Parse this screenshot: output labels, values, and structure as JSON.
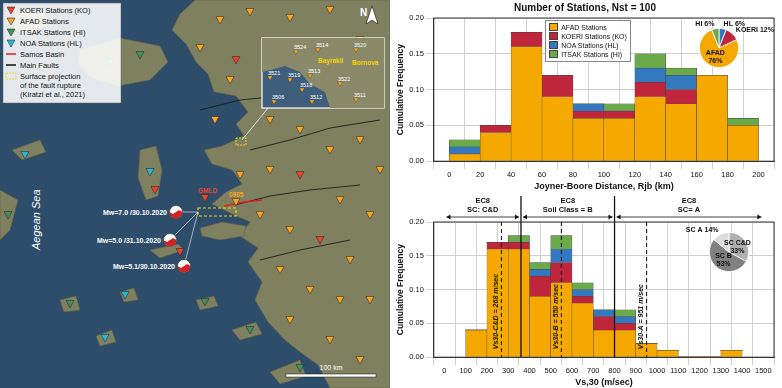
{
  "map": {
    "legend": [
      {
        "label": "KOERI Stations (KO)",
        "color": "#e8432d",
        "marker": "triangle"
      },
      {
        "label": "AFAD Stations",
        "color": "#f5a623",
        "marker": "triangle"
      },
      {
        "label": "ITSAK Stations (HI)",
        "color": "#3f8f5f",
        "marker": "triangle"
      },
      {
        "label": "NOA Stations (HL)",
        "color": "#2bb5d4",
        "marker": "triangle"
      },
      {
        "label": "Samos Basin",
        "color": "#e02020",
        "marker": "line"
      },
      {
        "label": "Main Faults",
        "color": "#111111",
        "marker": "line"
      },
      {
        "label": [
          "Surface projection",
          "of the fault rupture",
          "(Kiratzi et al., 2021)"
        ],
        "color": "#f2d21b",
        "marker": "dashed_box"
      }
    ],
    "sea_label": "Aegean Sea",
    "north_label": "N",
    "scale_label": "100 km",
    "events": [
      "Mw=7.0 /30.10.2020",
      "Mw=5.0 /31.10.2020",
      "Mw=5.1/30.10.2020"
    ],
    "stations_labeled": [
      {
        "label": "GMLD",
        "color": "#e8432d"
      },
      {
        "label": "0905",
        "color": "#f5a623"
      }
    ],
    "inset": {
      "places": [
        "Bayrakli",
        "Bornova"
      ],
      "stations": [
        "3524",
        "3514",
        "3520",
        "3521",
        "3519",
        "3513",
        "3518",
        "3522",
        "3506",
        "3512",
        "3511"
      ]
    }
  },
  "chart_data": [
    {
      "type": "bar",
      "title": "Number of Stations, Nst = 100",
      "x_label": "Joyner-Boore Distance, Rjb (km)",
      "y_label": "Cumulative Frequency",
      "bins": [
        0,
        20,
        40,
        60,
        80,
        100,
        120,
        140,
        160,
        180,
        200
      ],
      "stacked": true,
      "grid": true,
      "legend": "top",
      "xlim": [
        0,
        200
      ],
      "xticks": [
        0,
        20,
        40,
        60,
        80,
        100,
        120,
        140,
        160,
        180,
        200
      ],
      "ylim": [
        0,
        0.2
      ],
      "yticks": [
        {
          "value": 0,
          "label": "0.00"
        },
        0.05,
        {
          "value": 0.1,
          "label": "0.10"
        },
        0.15,
        {
          "value": 0.2,
          "label": "0.20"
        }
      ],
      "series": [
        {
          "name": "AFAD Stations",
          "color": "#f5a800",
          "values": [
            0.01,
            0.04,
            0.16,
            0.09,
            0.06,
            0.06,
            0.09,
            0.08,
            0.12,
            0.05
          ]
        },
        {
          "name": "KOERI Stations (KO)",
          "color": "#c0263b",
          "values": [
            0,
            0.01,
            0.02,
            0.03,
            0.01,
            0.01,
            0.02,
            0.02,
            0,
            0
          ]
        },
        {
          "name": "NOA Stations (HL)",
          "color": "#3478c0",
          "values": [
            0.01,
            0,
            0,
            0,
            0.01,
            0,
            0.02,
            0.02,
            0,
            0
          ]
        },
        {
          "name": "ITSAK Stations (HI)",
          "color": "#6aaa4a",
          "values": [
            0.01,
            0,
            0,
            0,
            0,
            0.01,
            0.02,
            0.01,
            0,
            0.01
          ]
        }
      ],
      "inset": {
        "type": "pie",
        "categories": [
          "HL",
          "KOERI",
          "AFAD",
          "HI"
        ],
        "values": [
          6,
          12,
          76,
          6
        ],
        "value_labels": [
          "HL 6%",
          "KOERI 12%",
          "AFAD 76%",
          "HI 6%"
        ],
        "colors": [
          "#3478c0",
          "#c0263b",
          "#f5a800",
          "#6aaa4a"
        ]
      }
    },
    {
      "type": "bar",
      "x_label": "Vs,30 (m/sec)",
      "y_label": "Cumulative Frequency",
      "bins": [
        100,
        200,
        300,
        400,
        500,
        600,
        700,
        800,
        900,
        1000,
        1100,
        1200,
        1300,
        1400
      ],
      "stacked": true,
      "grid": true,
      "xlim": [
        0,
        1500
      ],
      "xticks": [
        0,
        100,
        200,
        300,
        400,
        500,
        600,
        700,
        800,
        900,
        1000,
        1100,
        1200,
        1300,
        1400,
        1500
      ],
      "ylim": [
        0,
        0.2
      ],
      "yticks": [
        {
          "value": 0,
          "label": "0.00"
        },
        0.05,
        {
          "value": 0.1,
          "label": "0.10"
        },
        0.15,
        {
          "value": 0.2,
          "label": "0.20"
        }
      ],
      "series": [
        {
          "name": "AFAD Stations",
          "color": "#f5a800",
          "values": [
            0.04,
            0.16,
            0.16,
            0.09,
            0.11,
            0.08,
            0.04,
            0.04,
            0.02,
            0.01,
            0,
            0,
            0.01
          ]
        },
        {
          "name": "KOERI Stations (KO)",
          "color": "#c0263b",
          "values": [
            0,
            0.01,
            0.01,
            0.03,
            0.03,
            0.01,
            0.02,
            0.01,
            0,
            0,
            0,
            0,
            0
          ]
        },
        {
          "name": "NOA Stations (HL)",
          "color": "#3478c0",
          "values": [
            0,
            0,
            0,
            0.01,
            0.02,
            0.01,
            0.01,
            0.01,
            0,
            0,
            0,
            0,
            0
          ]
        },
        {
          "name": "ITSAK Stations (HI)",
          "color": "#6aaa4a",
          "values": [
            0,
            0,
            0.01,
            0.01,
            0.02,
            0.01,
            0,
            0.01,
            0,
            0,
            0,
            0,
            0
          ]
        }
      ],
      "boundaries": [
        360,
        800
      ],
      "regions": [
        [
          "EC8",
          "SC: C&D"
        ],
        [
          "EC8",
          "Soil Class = B"
        ],
        [
          "EC8",
          "SC= A"
        ]
      ],
      "reference_lines": [
        {
          "value": 268,
          "label": "Vs30-C&D = 268 m/sec"
        },
        {
          "value": 550,
          "label": "Vs30-B = 550 m/sec"
        },
        {
          "value": 951,
          "label": "Vs30-A = 951 m/sec"
        }
      ],
      "inset": {
        "type": "pie",
        "categories": [
          "SC C&D",
          "SC B",
          "SC A"
        ],
        "values": [
          33,
          53,
          14
        ],
        "value_labels": [
          "SC C&D 33%",
          "SC B 53%",
          "SC A 14%"
        ],
        "colors": [
          "#b0b0b0",
          "#808080",
          "#dcdcdc"
        ]
      }
    }
  ]
}
